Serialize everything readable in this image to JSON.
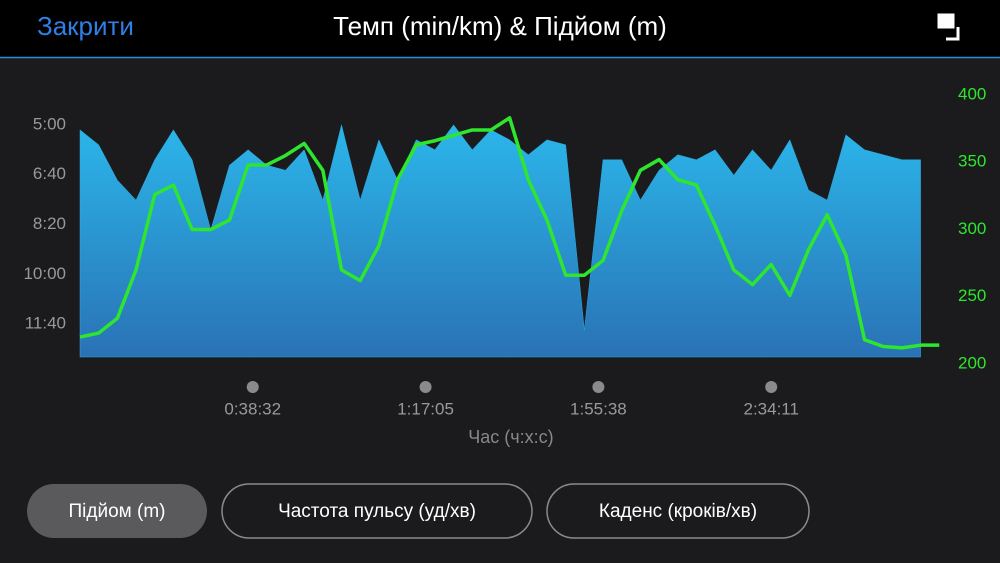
{
  "ui": {
    "close": "Закрити",
    "buttons": [
      "Підйом (m)",
      "Частота пульсу (уд/хв)",
      "Каденс (кроків/хв)"
    ],
    "selected_button": 0
  },
  "chart_data": {
    "type": "area",
    "title": "Темп (min/km) & Підйом (m)",
    "x_label": "Час (ч:х:с)",
    "x": [
      0,
      250,
      500,
      750,
      1000,
      1250,
      1500,
      1750,
      2000,
      2250,
      2500,
      2750,
      3000,
      3250,
      3500,
      3750,
      4000,
      4250,
      4500,
      4750,
      5000,
      5250,
      5500,
      5750,
      6000,
      6250,
      6500,
      6750,
      7000,
      7250,
      7500,
      7750,
      8000,
      8250,
      8500,
      8750,
      9000,
      9250,
      9500,
      9750,
      10000,
      10250,
      10500,
      10750,
      11000,
      11250,
      11500
    ],
    "series": [
      {
        "color": "#29abe2",
        "values": [
          310,
          340,
          411,
          451,
          370,
          310,
          370,
          511,
          381,
          350,
          381,
          391,
          350,
          451,
          300,
          451,
          330,
          411,
          330,
          350,
          300,
          350,
          310,
          330,
          360,
          330,
          340,
          712,
          370,
          370,
          451,
          391,
          360,
          370,
          350,
          401,
          350,
          391,
          330,
          431,
          451,
          320,
          350,
          360,
          370,
          370,
          null
        ]
      },
      {
        "type": "line",
        "axis": "y2",
        "color": "#2ee62e",
        "values": [
          220,
          223,
          234,
          270,
          326,
          333,
          300,
          300,
          307,
          348,
          348,
          355,
          364,
          344,
          270,
          262,
          288,
          337,
          363,
          366,
          370,
          374,
          374,
          383,
          337,
          307,
          266,
          266,
          277,
          314,
          344,
          352,
          337,
          333,
          303,
          270,
          259,
          274,
          251,
          285,
          311,
          281,
          218,
          213,
          212,
          214,
          214
        ]
      }
    ],
    "xlim": [
      0,
      11550
    ],
    "xticks": [
      {
        "value": 2312,
        "label": "0:38:32"
      },
      {
        "value": 4625,
        "label": "1:17:05"
      },
      {
        "value": 6938,
        "label": "1:55:38"
      },
      {
        "value": 9251,
        "label": "2:34:11"
      }
    ],
    "ylim": [
      780,
      240
    ],
    "yticks": [
      {
        "value": 300,
        "label": "5:00"
      },
      {
        "value": 400,
        "label": "6:40"
      },
      {
        "value": 500,
        "label": "8:20"
      },
      {
        "value": 600,
        "label": "10:00"
      },
      {
        "value": 700,
        "label": "11:40"
      }
    ],
    "y2lim": [
      200,
      400
    ],
    "y2ticks": [
      200,
      250,
      300,
      350,
      400
    ]
  }
}
